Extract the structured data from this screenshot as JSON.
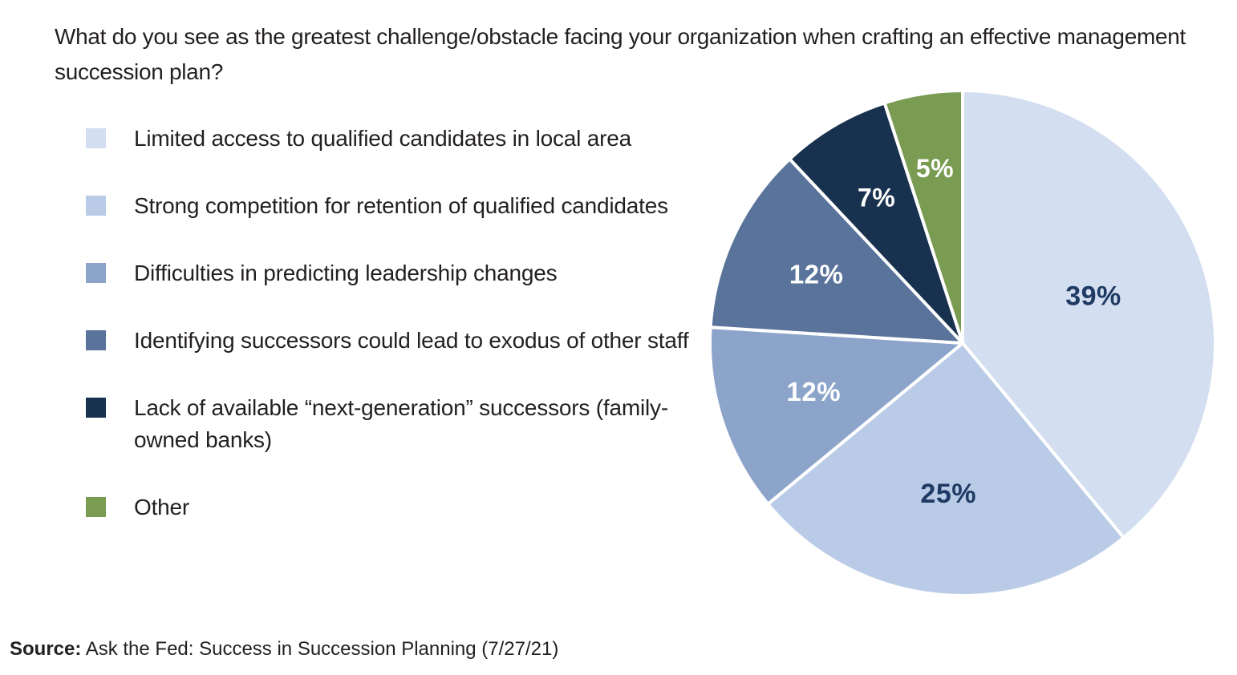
{
  "title": "What do you see as the greatest challenge/obstacle facing your organization when crafting an effective management succession plan?",
  "source": {
    "label": "Source:",
    "text": " Ask the Fed: Success in Succession Planning (7/27/21)"
  },
  "colors": {
    "background": "#FFFFFF",
    "text": "#231F20",
    "dark_label": "#1F3A63",
    "light_label": "#FFFFFF",
    "slice_divider": "#FFFFFF"
  },
  "chart_data": {
    "type": "pie",
    "title": "What do you see as the greatest challenge/obstacle facing your organization when crafting an effective management succession plan?",
    "legend_position": "left",
    "start_angle_deg": 0,
    "direction": "clockwise",
    "value_suffix": "%",
    "slices": [
      {
        "label": "Limited access to qualified candidates in local area",
        "value": 39,
        "color": "#D3DEF0",
        "label_color": "#1F3A63",
        "label_r": 0.55,
        "label_size": 34
      },
      {
        "label": "Strong competition for retention of qualified candidates",
        "value": 25,
        "color": "#B9CBE7",
        "label_color": "#1F3A63",
        "label_r": 0.6,
        "label_size": 34
      },
      {
        "label": "Difficulties in predicting leadership changes",
        "value": 12,
        "color": "#8DA4CA",
        "label_color": "#FFFFFF",
        "label_r": 0.62,
        "label_size": 33
      },
      {
        "label": "Identifying successors could lead to exodus of other staff",
        "value": 12,
        "color": "#59739B",
        "label_color": "#FFFFFF",
        "label_r": 0.64,
        "label_size": 33
      },
      {
        "label": "Lack of available “next-generation” successors (family-owned banks)",
        "value": 7,
        "color": "#18314F",
        "label_color": "#FFFFFF",
        "label_r": 0.67,
        "label_size": 32
      },
      {
        "label": "Other",
        "value": 5,
        "color": "#7A9B52",
        "label_color": "#FFFFFF",
        "label_r": 0.7,
        "label_size": 32
      }
    ]
  }
}
